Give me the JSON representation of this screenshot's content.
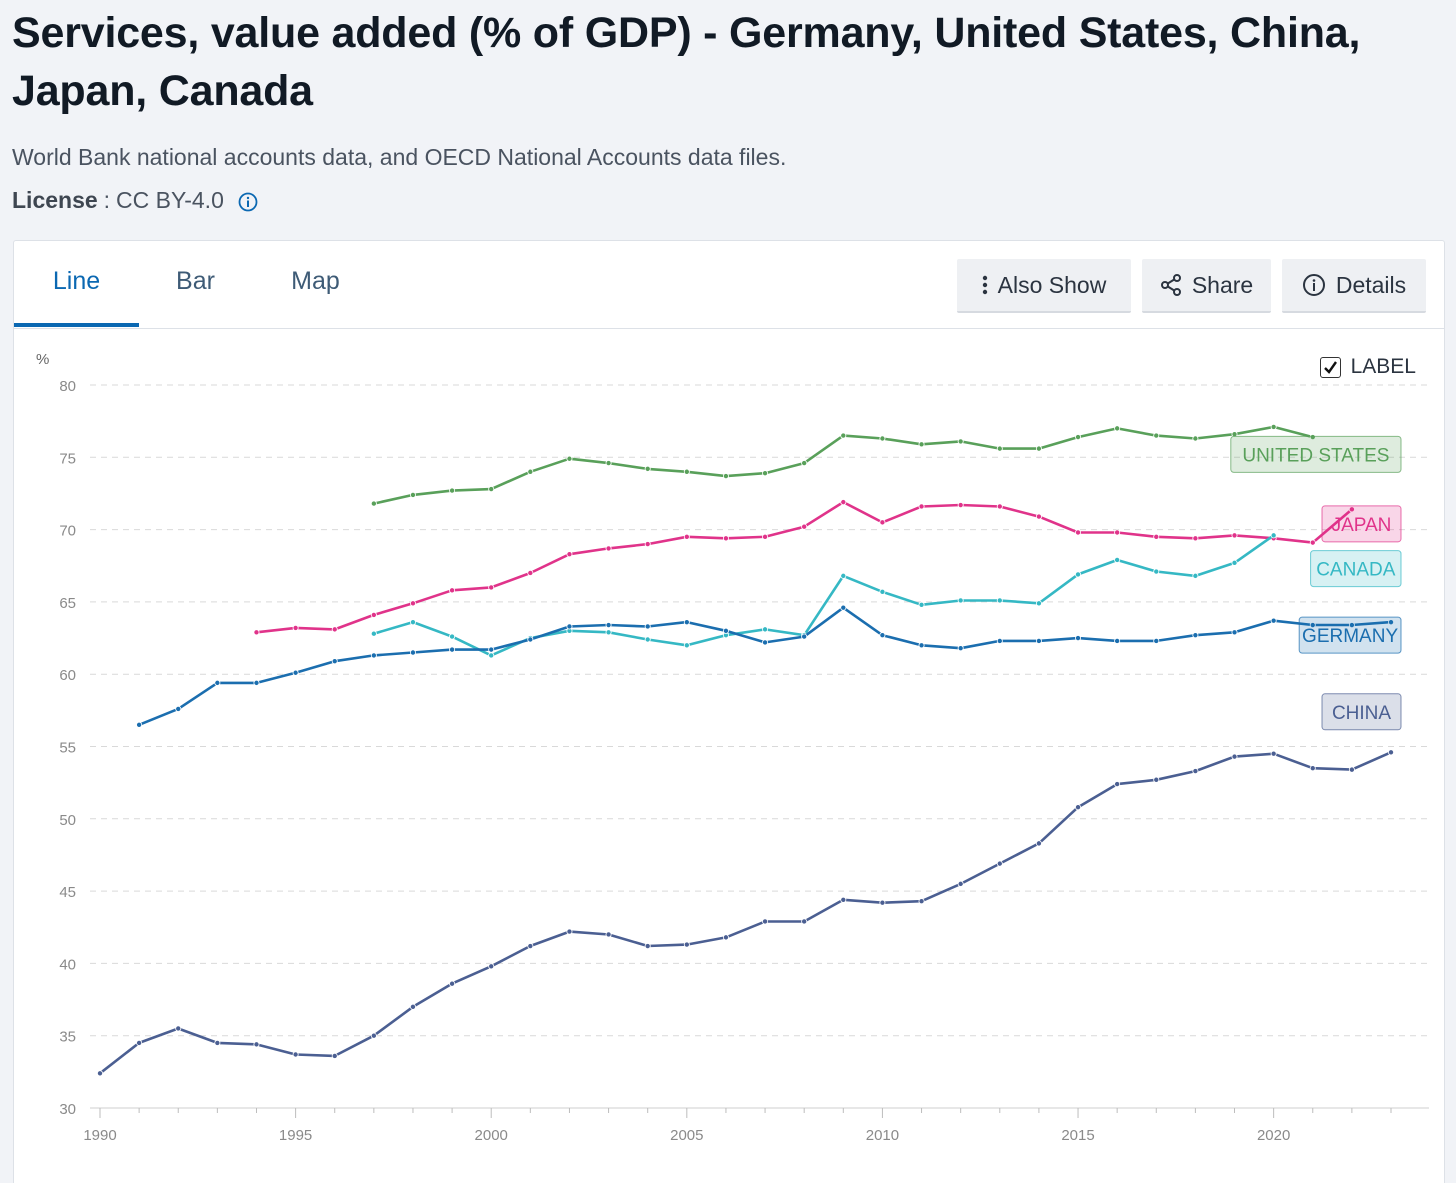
{
  "header": {
    "title": "Services, value added (% of GDP) - Germany, United States, China, Japan, Canada",
    "source": "World Bank national accounts data, and OECD National Accounts data files.",
    "license_label": "License",
    "license_sep": ":",
    "license_value": "CC BY-4.0"
  },
  "tabs": [
    {
      "label": "Line"
    },
    {
      "label": "Bar"
    },
    {
      "label": "Map"
    }
  ],
  "toolbar": {
    "also_show": "Also Show",
    "share": "Share",
    "details": "Details"
  },
  "label_toggle": {
    "text": "LABEL",
    "checked": true
  },
  "chart_data": {
    "type": "line",
    "ylabel": "%",
    "ylim": [
      30,
      80
    ],
    "yticks": [
      30,
      35,
      40,
      45,
      50,
      55,
      60,
      65,
      70,
      75,
      80
    ],
    "xlim": [
      1990,
      2023
    ],
    "xticks": [
      1990,
      1995,
      2000,
      2005,
      2010,
      2015,
      2020
    ],
    "grid": true,
    "series": [
      {
        "name": "UNITED STATES",
        "color": "#59a05a",
        "x": [
          1997,
          1998,
          1999,
          2000,
          2001,
          2002,
          2003,
          2004,
          2005,
          2006,
          2007,
          2008,
          2009,
          2010,
          2011,
          2012,
          2013,
          2014,
          2015,
          2016,
          2017,
          2018,
          2019,
          2020,
          2021
        ],
        "values": [
          71.8,
          72.4,
          72.7,
          72.8,
          74.0,
          74.9,
          74.6,
          74.2,
          74.0,
          73.7,
          73.9,
          74.6,
          76.5,
          76.3,
          75.9,
          76.1,
          75.6,
          75.6,
          76.4,
          77.0,
          76.5,
          76.3,
          76.6,
          77.1,
          76.4
        ]
      },
      {
        "name": "JAPAN",
        "color": "#e0338a",
        "x": [
          1994,
          1995,
          1996,
          1997,
          1998,
          1999,
          2000,
          2001,
          2002,
          2003,
          2004,
          2005,
          2006,
          2007,
          2008,
          2009,
          2010,
          2011,
          2012,
          2013,
          2014,
          2015,
          2016,
          2017,
          2018,
          2019,
          2020,
          2021,
          2022
        ],
        "values": [
          62.9,
          63.2,
          63.1,
          64.1,
          64.9,
          65.8,
          66.0,
          67.0,
          68.3,
          68.7,
          69.0,
          69.5,
          69.4,
          69.5,
          70.2,
          71.9,
          70.5,
          71.6,
          71.7,
          71.6,
          70.9,
          69.8,
          69.8,
          69.5,
          69.4,
          69.6,
          69.4,
          69.1,
          71.4
        ]
      },
      {
        "name": "CANADA",
        "color": "#35b8c4",
        "x": [
          1997,
          1998,
          1999,
          2000,
          2001,
          2002,
          2003,
          2004,
          2005,
          2006,
          2007,
          2008,
          2009,
          2010,
          2011,
          2012,
          2013,
          2014,
          2015,
          2016,
          2017,
          2018,
          2019,
          2020
        ],
        "values": [
          62.8,
          63.6,
          62.6,
          61.3,
          62.5,
          63.0,
          62.9,
          62.4,
          62.0,
          62.7,
          63.1,
          62.7,
          66.8,
          65.7,
          64.8,
          65.1,
          65.1,
          64.9,
          66.9,
          67.9,
          67.1,
          66.8,
          67.7,
          69.6
        ]
      },
      {
        "name": "GERMANY",
        "color": "#1b6eaf",
        "x": [
          1991,
          1992,
          1993,
          1994,
          1995,
          1996,
          1997,
          1998,
          1999,
          2000,
          2001,
          2002,
          2003,
          2004,
          2005,
          2006,
          2007,
          2008,
          2009,
          2010,
          2011,
          2012,
          2013,
          2014,
          2015,
          2016,
          2017,
          2018,
          2019,
          2020,
          2021,
          2022,
          2023
        ],
        "values": [
          56.5,
          57.6,
          59.4,
          59.4,
          60.1,
          60.9,
          61.3,
          61.5,
          61.7,
          61.7,
          62.4,
          63.3,
          63.4,
          63.3,
          63.6,
          63.0,
          62.2,
          62.6,
          64.6,
          62.7,
          62.0,
          61.8,
          62.3,
          62.3,
          62.5,
          62.3,
          62.3,
          62.7,
          62.9,
          63.7,
          63.4,
          63.4,
          63.6
        ]
      },
      {
        "name": "CHINA",
        "color": "#4b5f92",
        "x": [
          1990,
          1991,
          1992,
          1993,
          1994,
          1995,
          1996,
          1997,
          1998,
          1999,
          2000,
          2001,
          2002,
          2003,
          2004,
          2005,
          2006,
          2007,
          2008,
          2009,
          2010,
          2011,
          2012,
          2013,
          2014,
          2015,
          2016,
          2017,
          2018,
          2019,
          2020,
          2021,
          2022,
          2023
        ],
        "values": [
          32.4,
          34.5,
          35.5,
          34.5,
          34.4,
          33.7,
          33.6,
          35.0,
          37.0,
          38.6,
          39.8,
          41.2,
          42.2,
          42.0,
          41.2,
          41.3,
          41.8,
          42.9,
          42.9,
          44.4,
          44.2,
          44.3,
          45.5,
          46.9,
          48.3,
          50.8,
          52.4,
          52.7,
          53.3,
          54.3,
          54.5,
          53.5,
          53.4,
          54.6
        ]
      }
    ]
  }
}
